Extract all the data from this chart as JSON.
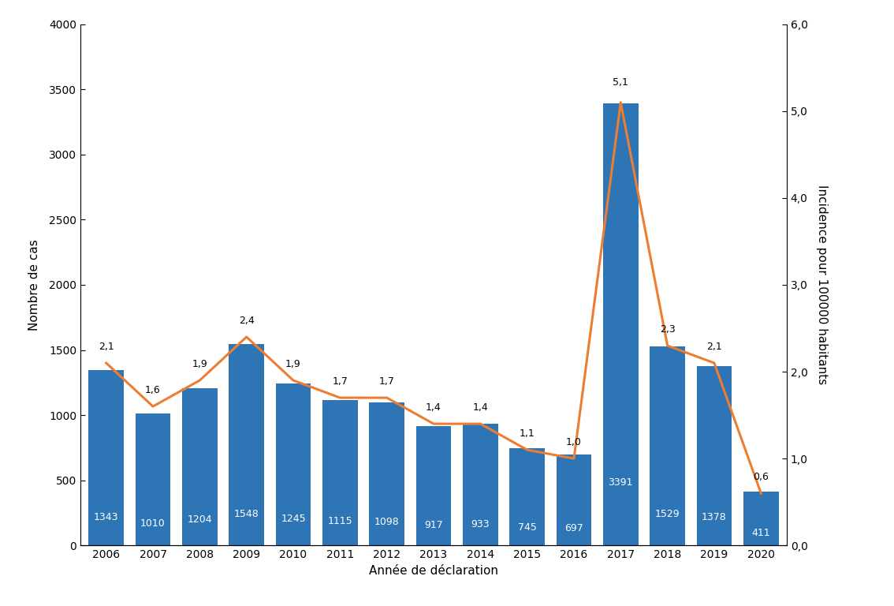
{
  "years": [
    2006,
    2007,
    2008,
    2009,
    2010,
    2011,
    2012,
    2013,
    2014,
    2015,
    2016,
    2017,
    2018,
    2019,
    2020
  ],
  "cases": [
    1343,
    1010,
    1204,
    1548,
    1245,
    1115,
    1098,
    917,
    933,
    745,
    697,
    3391,
    1529,
    1378,
    411
  ],
  "rates": [
    2.1,
    1.6,
    1.9,
    2.4,
    1.9,
    1.7,
    1.7,
    1.4,
    1.4,
    1.1,
    1.0,
    5.1,
    2.3,
    2.1,
    0.6
  ],
  "rate_labels": [
    "2,1",
    "1,6",
    "1,9",
    "2,4",
    "1,9",
    "1,7",
    "1,7",
    "1,4",
    "1,4",
    "1,1",
    "1,0",
    "5,1",
    "2,3",
    "2,1",
    "0,6"
  ],
  "bar_color": "#2E75B6",
  "line_color": "#ED7D31",
  "ylim_left": [
    0,
    4000
  ],
  "ylim_right": [
    0.0,
    6.0
  ],
  "yticks_left": [
    0,
    500,
    1000,
    1500,
    2000,
    2500,
    3000,
    3500,
    4000
  ],
  "yticks_right": [
    0.0,
    1.0,
    2.0,
    3.0,
    4.0,
    5.0,
    6.0
  ],
  "ytick_labels_right": [
    "0,0",
    "1,0",
    "2,0",
    "3,0",
    "4,0",
    "5,0",
    "6,0"
  ],
  "xlabel": "Année de déclaration",
  "ylabel_left": "Nombre de cas",
  "ylabel_right": "Incidence pour 100000 habitants",
  "bar_label_fontsize": 9,
  "rate_label_fontsize": 9,
  "axis_label_fontsize": 11,
  "tick_fontsize": 10,
  "background_color": "#ffffff",
  "bar_width": 0.75,
  "line_width": 2.2
}
